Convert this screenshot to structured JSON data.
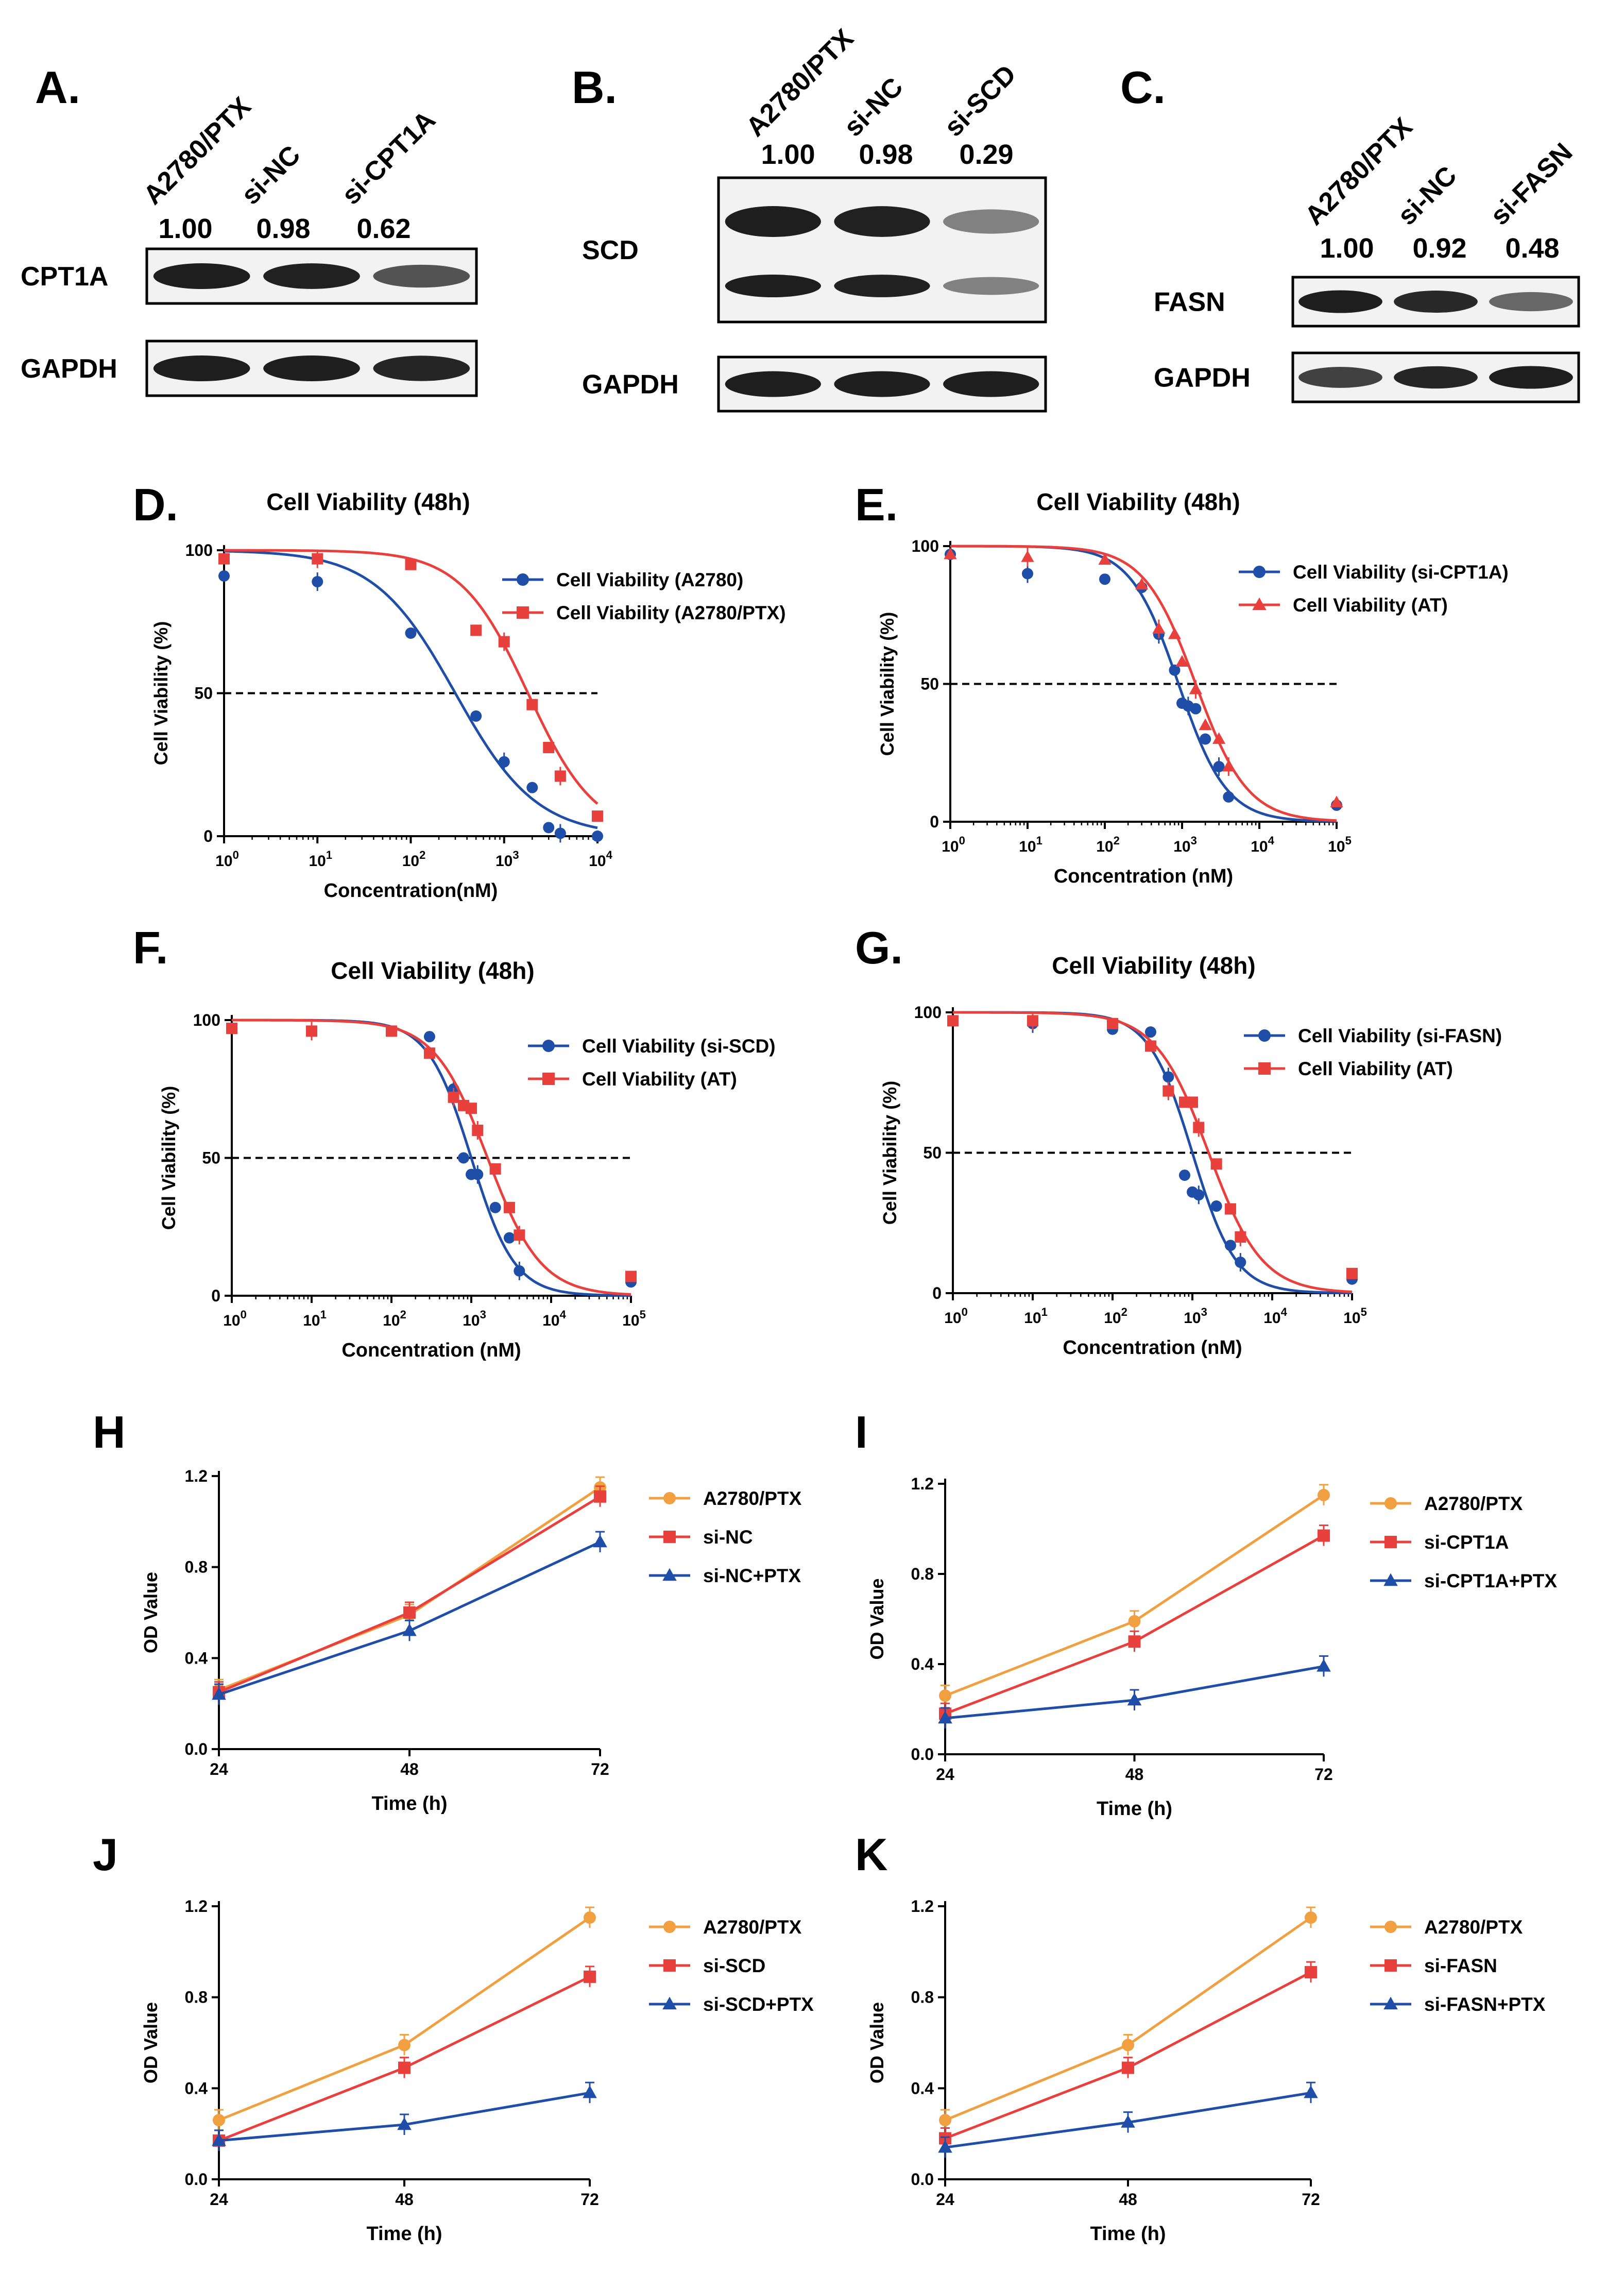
{
  "blots": [
    {
      "letter": "A.",
      "lanes": [
        "A2780/PTX",
        "si-NC",
        "si-CPT1A"
      ],
      "ratios": [
        "1.00",
        "0.98",
        "0.62"
      ],
      "rows": [
        {
          "label": "CPT1A",
          "intensities": [
            1.0,
            0.98,
            0.62
          ]
        },
        {
          "label": "GAPDH",
          "intensities": [
            1.0,
            1.0,
            0.95
          ]
        }
      ]
    },
    {
      "letter": "B.",
      "lanes": [
        "A2780/PTX",
        "si-NC",
        "si-SCD"
      ],
      "ratios": [
        "1.00",
        "0.98",
        "0.29"
      ],
      "rows": [
        {
          "label": "SCD",
          "intensities": [
            1.0,
            0.98,
            0.29
          ]
        },
        {
          "label": "GAPDH",
          "intensities": [
            1.0,
            1.0,
            1.0
          ]
        }
      ]
    },
    {
      "letter": "C.",
      "lanes": [
        "A2780/PTX",
        "si-NC",
        "si-FASN"
      ],
      "ratios": [
        "1.00",
        "0.92",
        "0.48"
      ],
      "rows": [
        {
          "label": "FASN",
          "intensities": [
            1.0,
            0.92,
            0.48
          ]
        },
        {
          "label": "GAPDH",
          "intensities": [
            0.75,
            0.95,
            1.0
          ]
        }
      ]
    }
  ],
  "chart_data": [
    {
      "letter": "D.",
      "type": "scatter",
      "fit": "dose-response",
      "title": "Cell Viability (48h)",
      "xlabel": "Concentration(nM)",
      "ylabel": "Cell Viability (%)",
      "xscale": "log10",
      "xlim": [
        1,
        10000
      ],
      "ylim": [
        0,
        100
      ],
      "xticks": [
        1,
        10,
        100,
        1000,
        10000
      ],
      "yticks": [
        0,
        50,
        100
      ],
      "reference_line": 50,
      "legend_position": "top-right",
      "series": [
        {
          "name": "Cell Viability (A2780)",
          "color": "#1f4ea8",
          "marker": "circle",
          "ec50": 300,
          "hill": 1.0,
          "x": [
            1,
            10,
            100,
            500,
            1000,
            2000,
            3000,
            4000,
            10000
          ],
          "y": [
            91,
            89,
            71,
            42,
            26,
            17,
            3,
            1,
            0
          ]
        },
        {
          "name": "Cell Viability (A2780/PTX)",
          "color": "#e8403c",
          "marker": "square",
          "ec50": 1800,
          "hill": 1.2,
          "x": [
            1,
            10,
            100,
            500,
            1000,
            2000,
            3000,
            4000,
            10000
          ],
          "y": [
            97,
            97,
            95,
            72,
            68,
            46,
            31,
            21,
            7
          ]
        }
      ]
    },
    {
      "letter": "E.",
      "type": "scatter",
      "fit": "dose-response",
      "title": "Cell Viability (48h)",
      "xlabel": "Concentration (nM)",
      "ylabel": "Cell Viability (%)",
      "xscale": "log10",
      "xlim": [
        1,
        100000
      ],
      "ylim": [
        0,
        100
      ],
      "xticks": [
        1,
        10,
        100,
        1000,
        10000,
        100000
      ],
      "yticks": [
        0,
        50,
        100
      ],
      "reference_line": 50,
      "legend_position": "top-right",
      "series": [
        {
          "name": "Cell Viability (si-CPT1A)",
          "color": "#1f4ea8",
          "marker": "circle",
          "ec50": 900,
          "hill": 1.4,
          "x": [
            1,
            10,
            100,
            300,
            500,
            800,
            1000,
            1200,
            1500,
            2000,
            3000,
            4000,
            100000
          ],
          "y": [
            97,
            90,
            88,
            85,
            68,
            55,
            43,
            42,
            41,
            30,
            20,
            9,
            6
          ]
        },
        {
          "name": "Cell Viability (AT)",
          "color": "#e8403c",
          "marker": "triangle",
          "ec50": 1500,
          "hill": 1.3,
          "x": [
            1,
            10,
            100,
            300,
            500,
            800,
            1000,
            1500,
            2000,
            3000,
            4000,
            100000
          ],
          "y": [
            97,
            96,
            95,
            86,
            70,
            68,
            58,
            48,
            35,
            30,
            20,
            7
          ]
        }
      ]
    },
    {
      "letter": "F.",
      "type": "scatter",
      "fit": "dose-response",
      "title": "Cell Viability (48h)",
      "xlabel": "Concentration (nM)",
      "ylabel": "Cell Viability (%)",
      "xscale": "log10",
      "xlim": [
        1,
        100000
      ],
      "ylim": [
        0,
        100
      ],
      "xticks": [
        1,
        10,
        100,
        1000,
        10000,
        100000
      ],
      "yticks": [
        0,
        50,
        100
      ],
      "reference_line": 50,
      "legend_position": "top-right",
      "series": [
        {
          "name": "Cell Viability (si-SCD)",
          "color": "#1f4ea8",
          "marker": "circle",
          "ec50": 1000,
          "hill": 1.6,
          "x": [
            1,
            10,
            100,
            300,
            600,
            800,
            1000,
            1200,
            2000,
            3000,
            4000,
            100000
          ],
          "y": [
            97,
            96,
            96,
            94,
            75,
            50,
            44,
            44,
            32,
            21,
            9,
            5
          ]
        },
        {
          "name": "Cell Viability (AT)",
          "color": "#e8403c",
          "marker": "square",
          "ec50": 1600,
          "hill": 1.3,
          "x": [
            1,
            10,
            100,
            300,
            600,
            800,
            1000,
            1200,
            2000,
            3000,
            4000,
            100000
          ],
          "y": [
            97,
            96,
            96,
            88,
            72,
            69,
            68,
            60,
            46,
            32,
            22,
            7
          ]
        }
      ]
    },
    {
      "letter": "G.",
      "type": "scatter",
      "fit": "dose-response",
      "title": "Cell Viability (48h)",
      "xlabel": "Concentration (nM)",
      "ylabel": "Cell Viability (%)",
      "xscale": "log10",
      "xlim": [
        1,
        100000
      ],
      "ylim": [
        0,
        100
      ],
      "xticks": [
        1,
        10,
        100,
        1000,
        10000,
        100000
      ],
      "yticks": [
        0,
        50,
        100
      ],
      "reference_line": 50,
      "legend_position": "top-right",
      "series": [
        {
          "name": "Cell Viability (si-FASN)",
          "color": "#1f4ea8",
          "marker": "circle",
          "ec50": 1000,
          "hill": 1.6,
          "x": [
            1,
            10,
            100,
            300,
            500,
            800,
            1000,
            1200,
            2000,
            3000,
            4000,
            100000
          ],
          "y": [
            97,
            96,
            94,
            93,
            77,
            42,
            36,
            35,
            31,
            17,
            11,
            5
          ]
        },
        {
          "name": "Cell Viability (AT)",
          "color": "#e8403c",
          "marker": "square",
          "ec50": 1600,
          "hill": 1.3,
          "x": [
            1,
            10,
            100,
            300,
            500,
            800,
            1000,
            1200,
            2000,
            3000,
            4000,
            100000
          ],
          "y": [
            97,
            97,
            96,
            88,
            72,
            68,
            68,
            59,
            46,
            30,
            20,
            7
          ]
        }
      ]
    },
    {
      "letter": "H",
      "type": "line",
      "xlabel": "Time (h)",
      "ylabel": "OD Value",
      "x": [
        24,
        48,
        72
      ],
      "xlim": [
        24,
        72
      ],
      "xticks": [
        24,
        48,
        72
      ],
      "ylim": [
        0,
        1.2
      ],
      "yticks": [
        "0.0",
        "0.4",
        "0.8",
        "1.2"
      ],
      "legend_position": "top-right",
      "series": [
        {
          "name": "A2780/PTX",
          "color": "#f0a040",
          "marker": "circle",
          "values": [
            0.26,
            0.59,
            1.15
          ]
        },
        {
          "name": "si-NC",
          "color": "#e8403c",
          "marker": "square",
          "values": [
            0.25,
            0.6,
            1.11
          ]
        },
        {
          "name": "si-NC+PTX",
          "color": "#1f4ea8",
          "marker": "triangle",
          "values": [
            0.24,
            0.52,
            0.91
          ]
        }
      ]
    },
    {
      "letter": "I",
      "type": "line",
      "xlabel": "Time (h)",
      "ylabel": "OD Value",
      "x": [
        24,
        48,
        72
      ],
      "xlim": [
        24,
        72
      ],
      "xticks": [
        24,
        48,
        72
      ],
      "ylim": [
        0,
        1.2
      ],
      "yticks": [
        "0.0",
        "0.4",
        "0.8",
        "1.2"
      ],
      "legend_position": "top-right",
      "series": [
        {
          "name": "A2780/PTX",
          "color": "#f0a040",
          "marker": "circle",
          "values": [
            0.26,
            0.59,
            1.15
          ]
        },
        {
          "name": "si-CPT1A",
          "color": "#e8403c",
          "marker": "square",
          "values": [
            0.18,
            0.5,
            0.97
          ]
        },
        {
          "name": "si-CPT1A+PTX",
          "color": "#1f4ea8",
          "marker": "triangle",
          "values": [
            0.16,
            0.24,
            0.39
          ]
        }
      ]
    },
    {
      "letter": "J",
      "type": "line",
      "xlabel": "Time (h)",
      "ylabel": "OD Value",
      "x": [
        24,
        48,
        72
      ],
      "xlim": [
        24,
        72
      ],
      "xticks": [
        24,
        48,
        72
      ],
      "ylim": [
        0,
        1.2
      ],
      "yticks": [
        "0.0",
        "0.4",
        "0.8",
        "1.2"
      ],
      "legend_position": "top-right",
      "series": [
        {
          "name": "A2780/PTX",
          "color": "#f0a040",
          "marker": "circle",
          "values": [
            0.26,
            0.59,
            1.15
          ]
        },
        {
          "name": "si-SCD",
          "color": "#e8403c",
          "marker": "square",
          "values": [
            0.17,
            0.49,
            0.89
          ]
        },
        {
          "name": "si-SCD+PTX",
          "color": "#1f4ea8",
          "marker": "triangle",
          "values": [
            0.17,
            0.24,
            0.38
          ]
        }
      ]
    },
    {
      "letter": "K",
      "type": "line",
      "xlabel": "Time (h)",
      "ylabel": "OD Value",
      "x": [
        24,
        48,
        72
      ],
      "xlim": [
        24,
        72
      ],
      "xticks": [
        24,
        48,
        72
      ],
      "ylim": [
        0,
        1.2
      ],
      "yticks": [
        "0.0",
        "0.4",
        "0.8",
        "1.2"
      ],
      "legend_position": "top-right",
      "series": [
        {
          "name": "A2780/PTX",
          "color": "#f0a040",
          "marker": "circle",
          "values": [
            0.26,
            0.59,
            1.15
          ]
        },
        {
          "name": "si-FASN",
          "color": "#e8403c",
          "marker": "square",
          "values": [
            0.18,
            0.49,
            0.91
          ]
        },
        {
          "name": "si-FASN+PTX",
          "color": "#1f4ea8",
          "marker": "triangle",
          "values": [
            0.14,
            0.25,
            0.38
          ]
        }
      ]
    }
  ]
}
